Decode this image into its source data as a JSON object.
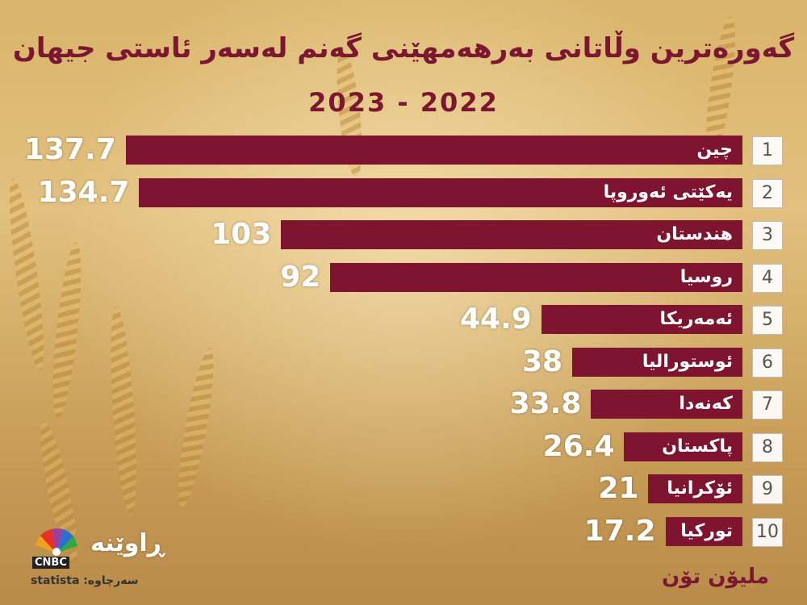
{
  "chart_data": {
    "type": "bar",
    "title": "گەورەترین وڵاتانی بەرهەمهێنی گەنم لەسەر ئاستی جیهان",
    "subtitle": "2023 - 2022",
    "categories": [
      "چین",
      "یەکێتی ئەوروپا",
      "هندستان",
      "روسیا",
      "ئەمەریکا",
      "ئوستورالیا",
      "کەنەدا",
      "پاکستان",
      "ئۆکرانیا",
      "تورکیا"
    ],
    "values": [
      137.7,
      134.7,
      103,
      92,
      44.9,
      38,
      33.8,
      26.4,
      21,
      17.2
    ],
    "value_labels": [
      "137.7",
      "134.7",
      "103",
      "92",
      "44.9",
      "38",
      "33.8",
      "26.4",
      "21",
      "17.2"
    ],
    "ranks": [
      "1",
      "2",
      "3",
      "4",
      "5",
      "6",
      "7",
      "8",
      "9",
      "10"
    ],
    "unit": "ملیۆن تۆن",
    "bar_color": "#7e1430"
  },
  "branding": {
    "name": "ڕاوێنە",
    "network": "CNBC",
    "source_label": "statista :سەرچاوە"
  },
  "colors": {
    "title": "#7b1730",
    "bar": "#7e1430"
  }
}
